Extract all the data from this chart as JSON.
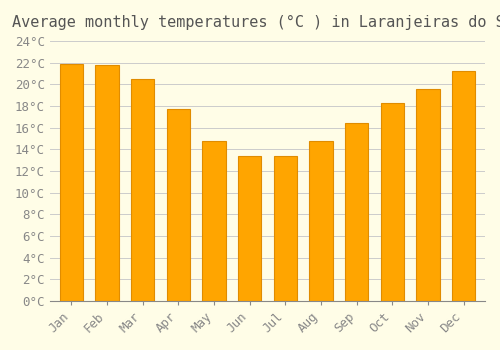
{
  "title": "Average monthly temperatures (°C ) in Laranjeiras do Sul",
  "months": [
    "Jan",
    "Feb",
    "Mar",
    "Apr",
    "May",
    "Jun",
    "Jul",
    "Aug",
    "Sep",
    "Oct",
    "Nov",
    "Dec"
  ],
  "temperatures": [
    21.9,
    21.8,
    20.5,
    17.7,
    14.8,
    13.4,
    13.4,
    14.8,
    16.4,
    18.3,
    19.6,
    21.2
  ],
  "bar_color": "#FFA500",
  "bar_edge_color": "#E08C00",
  "background_color": "#FFFDE7",
  "grid_color": "#CCCCCC",
  "ylim": [
    0,
    24
  ],
  "ytick_step": 2,
  "title_fontsize": 11,
  "tick_fontsize": 9,
  "font_family": "monospace"
}
